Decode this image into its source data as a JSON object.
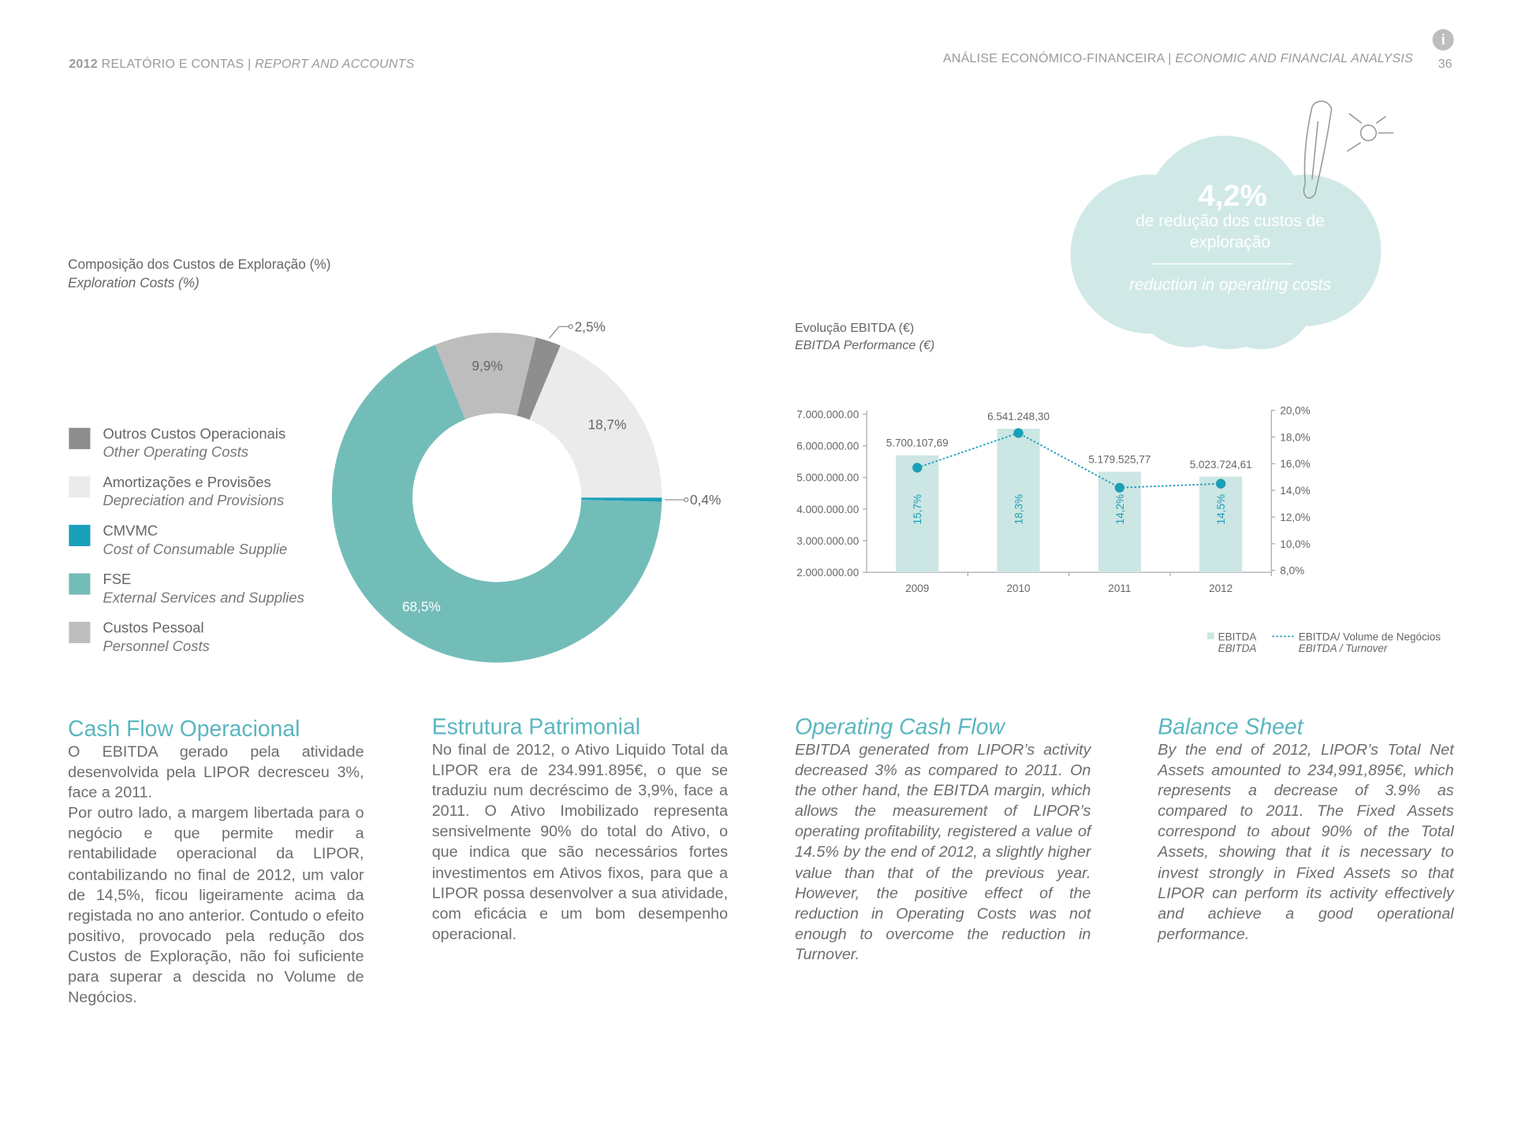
{
  "header": {
    "left": {
      "year": "2012",
      "pt": "RELATÓRIO E CONTAS",
      "separator": "|",
      "en": "REPORT AND ACCOUNTS"
    },
    "right": {
      "pt": "ANÁLISE ECONÓMICO-FINANCEIRA",
      "separator": "|",
      "en": "ECONOMIC AND FINANCIAL ANALYSIS"
    },
    "icon": "i",
    "page": "36"
  },
  "callout": {
    "value": "4,2%",
    "pt": "de redução dos custos de exploração",
    "en": "reduction in operating costs"
  },
  "chart_data": [
    {
      "type": "pie",
      "donut": true,
      "title": "Composição dos Custos de Exploração (%)",
      "subtitle": "Exploration Costs (%)",
      "categories": [
        "Outros Custos Operacionais",
        "Amortizações e Provisões",
        "CMVMC",
        "FSE",
        "Custos Pessoal"
      ],
      "categories_en": [
        "Other Operating Costs",
        "Depreciation and Provisions",
        "Cost of Consumable Supplie",
        "External Services and Supplies",
        "Personnel Costs"
      ],
      "values": [
        2.5,
        18.7,
        0.4,
        68.5,
        9.9
      ],
      "value_labels": [
        "2,5%",
        "18,7%",
        "0,4%",
        "68,5%",
        "9,9%"
      ],
      "colors": [
        "#8e8e8e",
        "#ebebeb",
        "#1a9fb8",
        "#73bdb9",
        "#bdbdbd"
      ]
    },
    {
      "type": "bar",
      "title": "Evolução EBITDA (€)",
      "subtitle": "EBITDA Performance (€)",
      "categories": [
        "2009",
        "2010",
        "2011",
        "2012"
      ],
      "series": [
        {
          "name": "EBITDA",
          "name_en": "EBITDA",
          "type": "bar",
          "color": "#cce6e3",
          "values": [
            5700107.69,
            6541248.3,
            5179525.77,
            5023724.61
          ],
          "value_labels": [
            "5.700.107,69",
            "6.541.248,30",
            "5.179.525,77",
            "5.023.724,61"
          ]
        },
        {
          "name": "EBITDA/ Volume de Negócios",
          "name_en": "EBITDA / Turnover",
          "type": "line",
          "axis": "y2",
          "color": "#1a9fb8",
          "values": [
            15.7,
            18.3,
            14.2,
            14.5
          ],
          "value_labels": [
            "15,7%",
            "18,3%",
            "14,2%",
            "14,5%"
          ]
        }
      ],
      "ylim": [
        2000000,
        7000000
      ],
      "yticks": [
        {
          "value": 2000000,
          "label": "2.000.000.00"
        },
        {
          "value": 3000000,
          "label": "3.000.000.00"
        },
        {
          "value": 4000000,
          "label": "4.000.000.00"
        },
        {
          "value": 5000000,
          "label": "5.000.000.00"
        },
        {
          "value": 6000000,
          "label": "6.000.000.00"
        },
        {
          "value": 7000000,
          "label": "7.000.000.00"
        }
      ],
      "y2lim": [
        8,
        20
      ],
      "y2ticks": [
        {
          "value": 8,
          "label": "8,0%"
        },
        {
          "value": 10,
          "label": "10,0%"
        },
        {
          "value": 12,
          "label": "12,0%"
        },
        {
          "value": 14,
          "label": "14,0%"
        },
        {
          "value": 16,
          "label": "16,0%"
        },
        {
          "value": 18,
          "label": "18,0%"
        },
        {
          "value": 20,
          "label": "20,0%"
        }
      ],
      "grid": false
    }
  ],
  "columns": [
    {
      "heading": "Cash Flow Operacional",
      "paragraphs": [
        "O EBITDA gerado pela atividade desenvolvida pela LIPOR decresceu 3%, face a 2011.",
        "Por outro lado, a margem libertada para o negócio e que permite medir a rentabilidade operacional da LIPOR, contabilizando no final de 2012, um valor de 14,5%, ficou ligeiramente acima da registada no ano anterior. Contudo o efeito positivo, provocado pela redução dos Custos de Exploração, não foi suficiente para superar a descida no Volume de Negócios."
      ]
    },
    {
      "heading": "Estrutura Patrimonial",
      "paragraphs": [
        "No final de 2012, o Ativo Liquido Total da LIPOR era de 234.991.895€, o que se traduziu num decréscimo de 3,9%, face a 2011. O Ativo Imobilizado representa sensivelmente 90% do total do Ativo, o que indica que são necessários fortes investimentos em Ativos fixos, para que a LIPOR possa desenvolver a sua atividade, com eficácia e um bom desempenho operacional."
      ]
    },
    {
      "heading": "Operating Cash Flow",
      "paragraphs": [
        "EBITDA generated from LIPOR’s activity decreased 3% as compared to 2011. On the other hand, the EBITDA margin, which allows the measurement of LIPOR’s operating profitability, registered a value of 14.5% by the end of 2012, a slightly higher value than that of the previous year. However, the positive effect of the reduction in Operating Costs was not enough to overcome the reduction in Turnover."
      ]
    },
    {
      "heading": "Balance Sheet",
      "paragraphs": [
        "By the end of 2012, LIPOR’s Total Net Assets amounted to 234,991,895€, which represents a decrease of 3.9% as compared to 2011. The Fixed Assets correspond to about 90% of the Total Assets, showing that it is necessary to invest strongly in Fixed Assets so that LIPOR can perform its activity effectively and achieve a good operational performance."
      ]
    }
  ]
}
